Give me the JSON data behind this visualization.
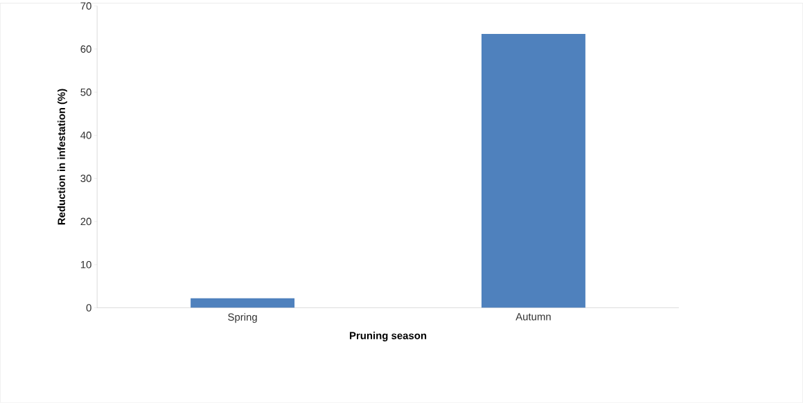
{
  "chart_data": {
    "type": "bar",
    "xlabel": "Pruning season",
    "ylabel": "Reduction in infestation (%)",
    "categories": [
      "Spring",
      "Autumn"
    ],
    "values": [
      2.2,
      63.5
    ],
    "color": "#4f81bd",
    "ylim": [
      0,
      70
    ],
    "yticks": [
      0,
      10,
      20,
      30,
      40,
      50,
      60,
      70
    ],
    "grid": false
  }
}
